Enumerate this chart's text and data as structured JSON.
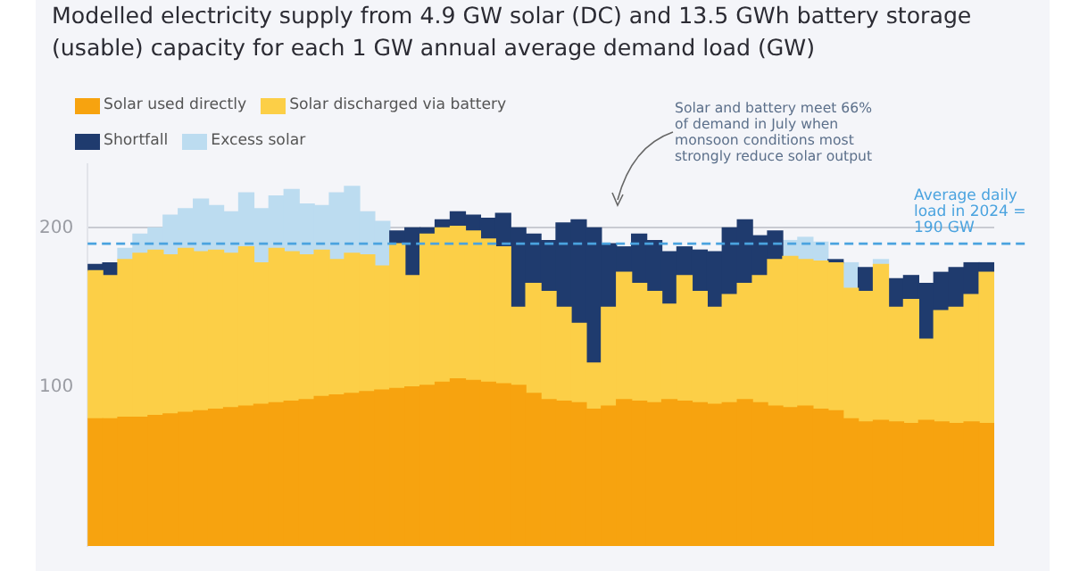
{
  "chart_data": {
    "type": "bar",
    "stacked": true,
    "title": "Modelled electricity supply from 4.9 GW solar (DC) and 13.5 GWh battery storage (usable) capacity for each 1 GW annual average demand load (GW)",
    "categories": [
      null,
      null,
      null,
      null,
      null,
      null,
      null,
      null,
      null,
      null,
      null,
      null,
      null,
      null,
      null,
      null,
      null,
      null,
      null,
      null,
      null,
      null,
      null,
      null,
      null,
      null,
      null,
      null,
      null,
      null,
      null,
      null,
      null,
      null,
      null,
      null,
      null,
      null,
      null,
      null,
      null,
      null,
      null,
      null,
      null,
      null,
      null,
      null,
      null,
      null,
      null,
      null,
      null,
      null,
      null,
      null,
      null,
      null,
      null,
      null
    ],
    "series": [
      {
        "name": "Solar used directly",
        "color": "#f7a30f",
        "values": [
          80,
          80,
          81,
          81,
          82,
          83,
          84,
          85,
          86,
          87,
          88,
          89,
          90,
          91,
          92,
          94,
          95,
          96,
          97,
          98,
          99,
          100,
          101,
          103,
          105,
          104,
          103,
          102,
          101,
          96,
          92,
          91,
          90,
          86,
          88,
          92,
          91,
          90,
          92,
          91,
          90,
          89,
          90,
          92,
          90,
          88,
          87,
          88,
          86,
          85,
          80,
          78,
          79,
          78,
          77,
          79,
          78,
          77,
          78,
          77
        ]
      },
      {
        "name": "Solar discharged via battery",
        "color": "#fccf47",
        "values": [
          93,
          90,
          99,
          103,
          104,
          100,
          103,
          100,
          100,
          97,
          100,
          89,
          97,
          94,
          91,
          92,
          85,
          88,
          86,
          78,
          91,
          70,
          95,
          97,
          96,
          94,
          90,
          86,
          49,
          69,
          68,
          59,
          50,
          29,
          62,
          80,
          74,
          70,
          60,
          79,
          70,
          61,
          68,
          73,
          80,
          92,
          95,
          92,
          93,
          93,
          82,
          82,
          98,
          72,
          78,
          51,
          70,
          73,
          80,
          95
        ]
      },
      {
        "name": "Shortfall",
        "color": "#1f3b6e",
        "values": [
          4,
          8,
          null,
          null,
          null,
          null,
          null,
          null,
          null,
          null,
          null,
          null,
          null,
          null,
          null,
          null,
          null,
          null,
          null,
          null,
          8,
          30,
          4,
          5,
          9,
          10,
          13,
          21,
          50,
          31,
          32,
          53,
          65,
          85,
          40,
          16,
          31,
          32,
          33,
          18,
          26,
          35,
          42,
          40,
          25,
          18,
          null,
          null,
          null,
          2,
          null,
          15,
          null,
          18,
          15,
          35,
          24,
          25,
          20,
          6
        ]
      },
      {
        "name": "Excess solar",
        "color": "#bcdcf0",
        "values": [
          null,
          null,
          7,
          12,
          14,
          25,
          25,
          33,
          28,
          26,
          34,
          34,
          33,
          39,
          32,
          28,
          42,
          42,
          27,
          28,
          null,
          null,
          null,
          null,
          null,
          null,
          null,
          null,
          null,
          null,
          null,
          null,
          null,
          null,
          null,
          null,
          null,
          null,
          null,
          null,
          null,
          null,
          null,
          null,
          null,
          null,
          10,
          14,
          12,
          null,
          16,
          null,
          3,
          null,
          null,
          null,
          null,
          null,
          null,
          null
        ]
      }
    ],
    "ylim": [
      0,
      240
    ],
    "yticks": [
      100,
      200
    ],
    "grid": "y",
    "tick_labels": "y",
    "legend": "top left",
    "ref_lines": [
      {
        "axis": "y",
        "value": 190,
        "label": "Average daily load in 2024 = 190 GW",
        "color": "#4aa3df",
        "line_style": "dashed"
      }
    ],
    "annotations": [
      "Solar and battery meet 66% of demand  in July when monsoon conditions most strongly reduce solar output"
    ]
  }
}
